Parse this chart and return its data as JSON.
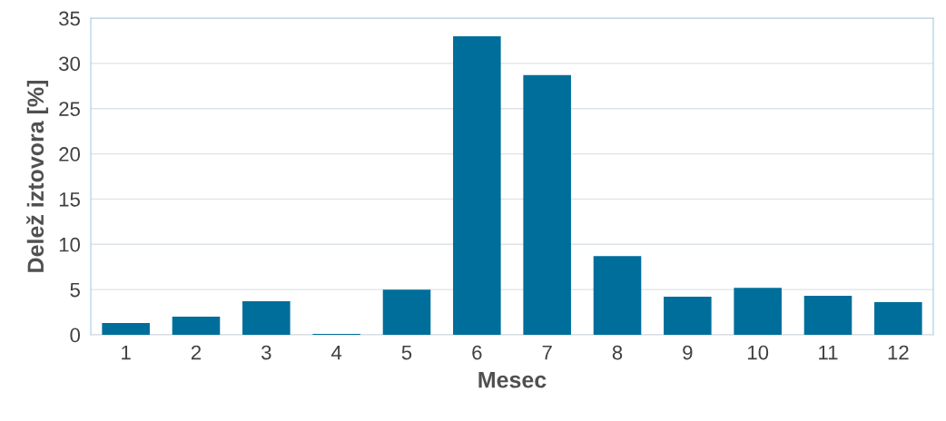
{
  "chart_data": {
    "type": "bar",
    "xlabel": "Mesec",
    "ylabel": "Delež iztovora [%]",
    "categories": [
      "1",
      "2",
      "3",
      "4",
      "5",
      "6",
      "7",
      "8",
      "9",
      "10",
      "11",
      "12"
    ],
    "values": [
      1.3,
      2.0,
      3.7,
      0.1,
      5.0,
      33.0,
      28.7,
      8.7,
      4.2,
      5.2,
      4.3,
      3.6
    ],
    "color": "#006e9a",
    "ylim": [
      0,
      35
    ],
    "yticks": [
      0,
      5,
      10,
      15,
      20,
      25,
      30,
      35
    ],
    "grid": "y"
  }
}
